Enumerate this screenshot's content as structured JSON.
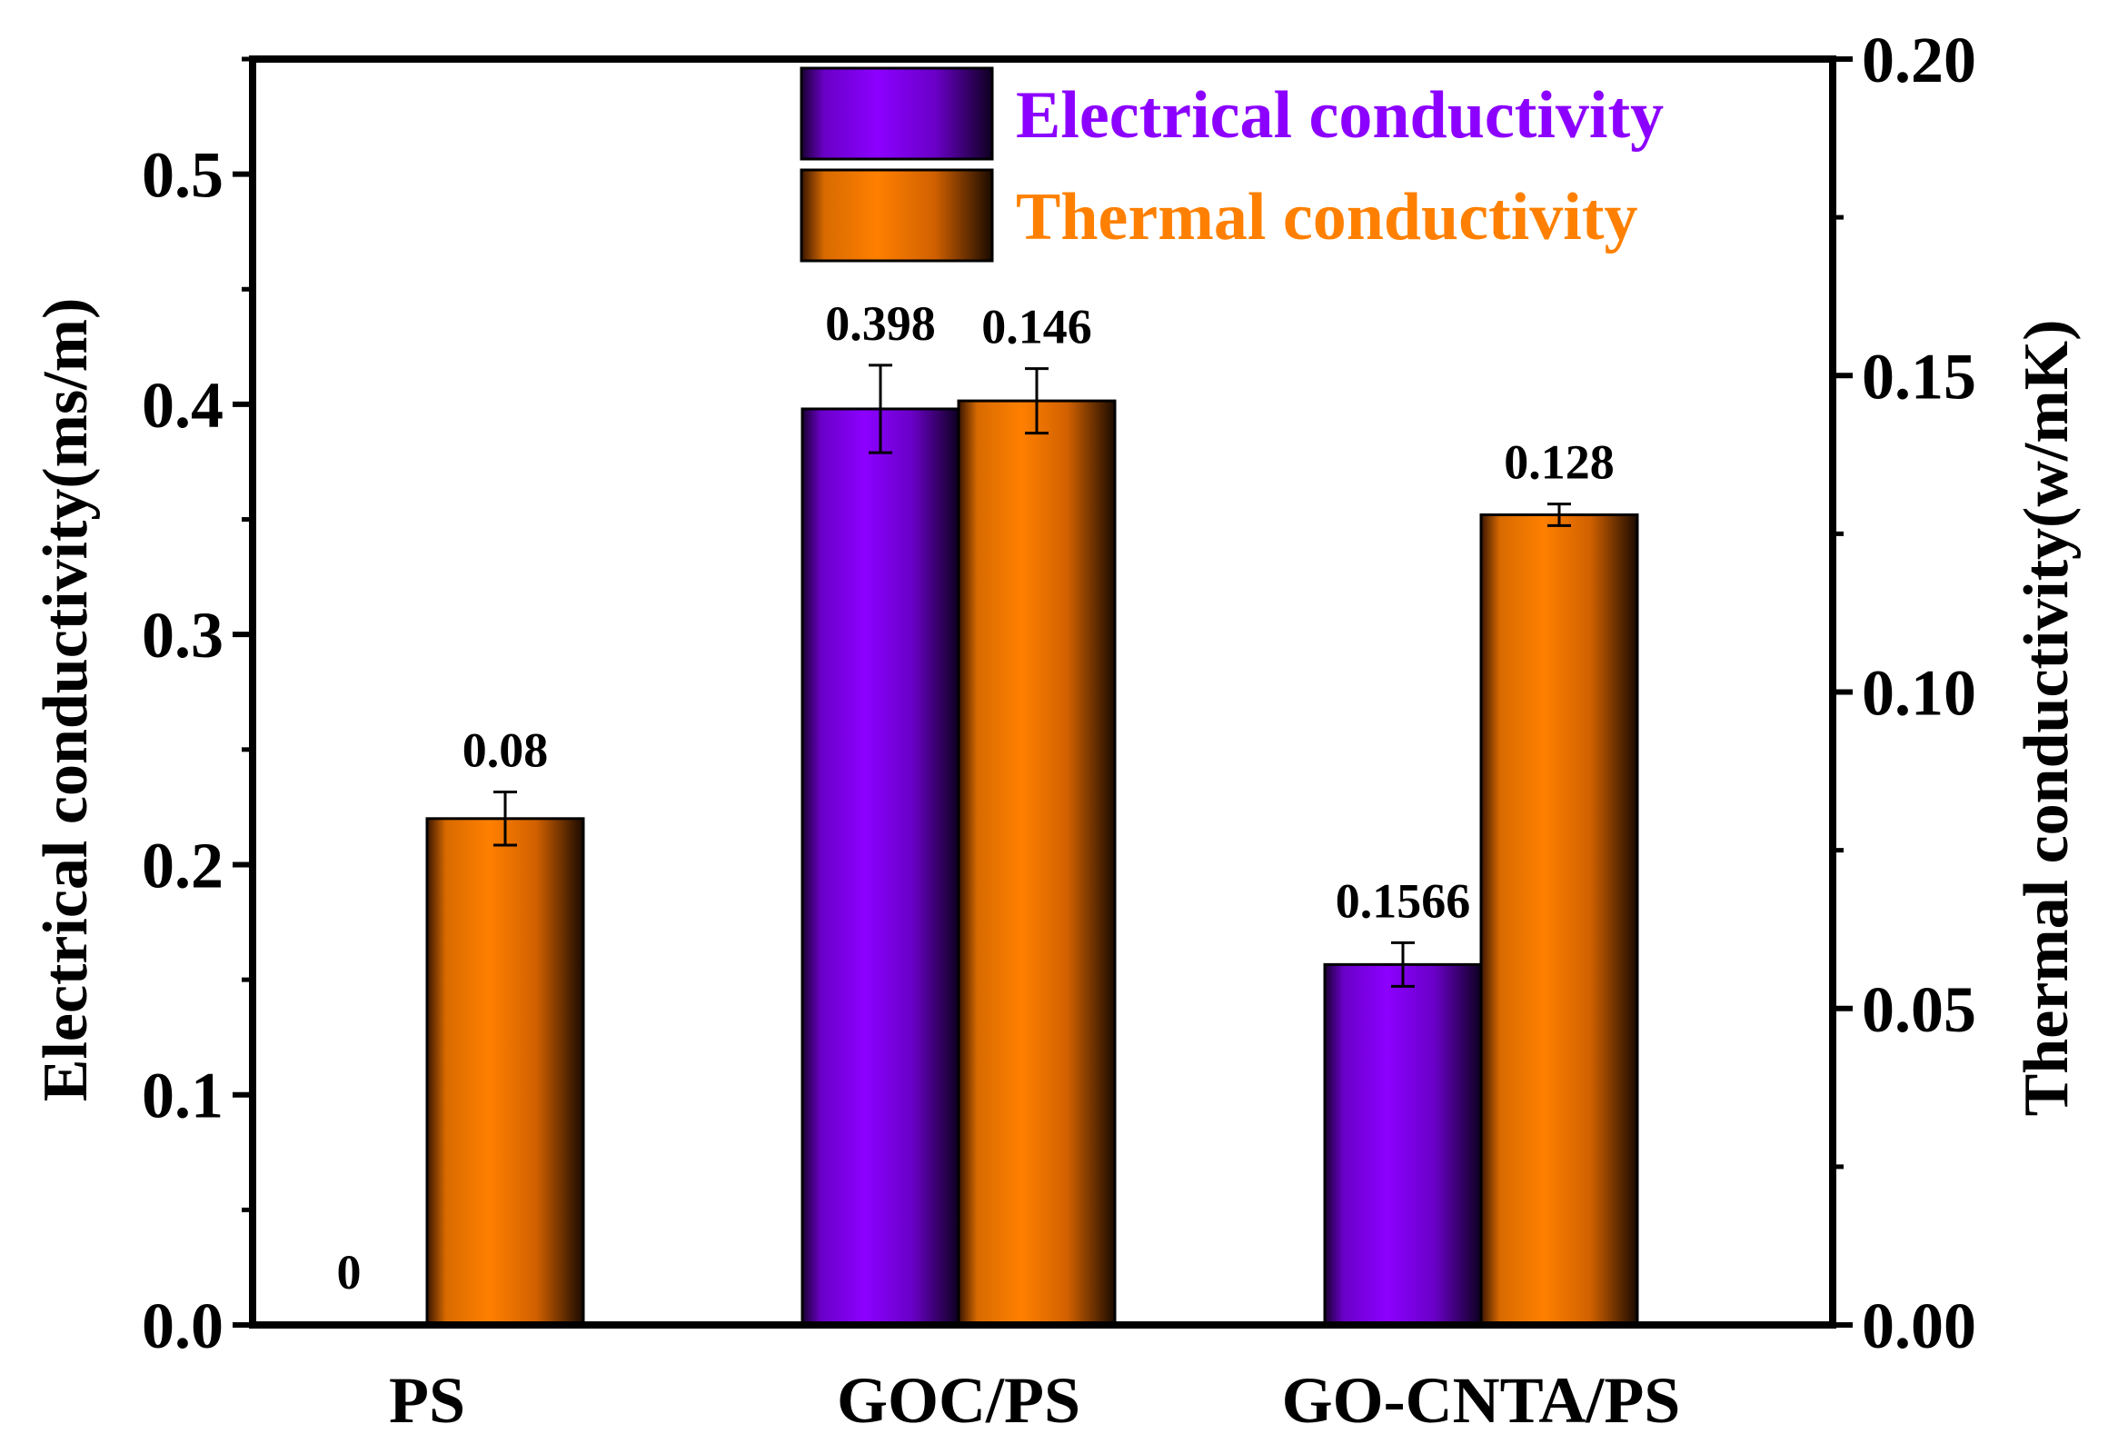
{
  "chart_data": {
    "type": "bar",
    "categories": [
      "PS",
      "GOC/PS",
      "GO-CNTA/PS"
    ],
    "y_left": {
      "label": "Electrical conductivity(ms/m)",
      "range": [
        0,
        0.55
      ],
      "ticks": [
        "0.0",
        "0.1",
        "0.2",
        "0.3",
        "0.4",
        "0.5"
      ],
      "tick_values": [
        0,
        0.1,
        0.2,
        0.3,
        0.4,
        0.5
      ],
      "minor_tick_values": [
        0.05,
        0.15,
        0.25,
        0.35,
        0.45,
        0.55
      ]
    },
    "y_right": {
      "label": "Thermal conductivity(w/mK)",
      "range": [
        0,
        0.2
      ],
      "ticks": [
        "0.00",
        "0.05",
        "0.10",
        "0.15",
        "0.20"
      ],
      "tick_values": [
        0,
        0.05,
        0.1,
        0.15,
        0.2
      ],
      "minor_tick_values": [
        0.025,
        0.075,
        0.125,
        0.175
      ]
    },
    "series": [
      {
        "name": "Electrical conductivity",
        "axis": "left",
        "color": "#8C00FF",
        "values": [
          0,
          0.398,
          0.1566
        ],
        "labels": [
          "0",
          "0.398",
          "0.1566"
        ],
        "errors": [
          0,
          0.019,
          0.0095
        ]
      },
      {
        "name": "Thermal conductivity",
        "axis": "right",
        "color": "#FF8000",
        "values": [
          0.08,
          0.146,
          0.128
        ],
        "labels": [
          "0.08",
          "0.146",
          "0.128"
        ],
        "errors": [
          0.0042,
          0.0051,
          0.0017
        ]
      }
    ],
    "grid": false,
    "legend": "top-center"
  }
}
